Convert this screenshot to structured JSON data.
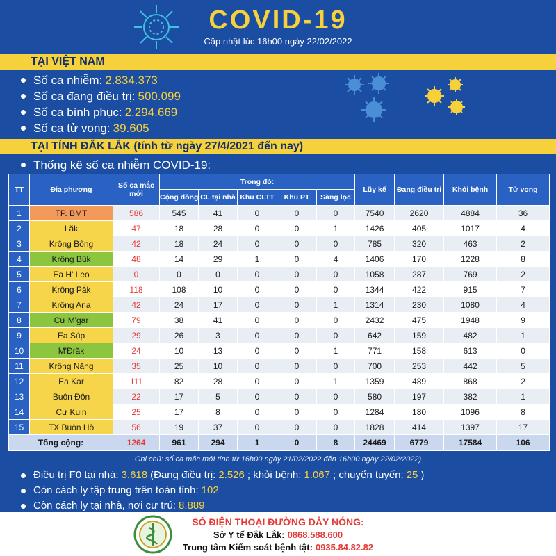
{
  "header": {
    "title": "COVID-19",
    "subtitle": "Cập nhật lúc 16h00 ngày 22/02/2022"
  },
  "vietnam": {
    "heading": "TẠI VIỆT NAM",
    "items": [
      {
        "label": "Số ca nhiễm:",
        "value": "2.834.373"
      },
      {
        "label": "Số ca đang điều trị:",
        "value": "500.099"
      },
      {
        "label": "Số ca bình phục:",
        "value": "2.294.669"
      },
      {
        "label": "Số ca tử vong:",
        "value": "39.605"
      }
    ]
  },
  "province": {
    "heading": "TẠI TỈNH ĐẮK LẮK (tính từ ngày 27/4/2021 đến nay)",
    "intro": "Thống kê số ca nhiễm COVID-19:"
  },
  "table": {
    "columns": [
      "TT",
      "Địa phương",
      "Số ca mắc mới",
      "Trong đó:",
      "Lũy kế",
      "Đang điều trị",
      "Khỏi bệnh",
      "Tử vong"
    ],
    "subcolumns": [
      "Cộng đồng",
      "CL tại nhà",
      "Khu CLTT",
      "Khu PT",
      "Sàng lọc"
    ],
    "name_colors": [
      "#f39a5b",
      "#f7d54a",
      "#f7d54a",
      "#8cc63f",
      "#f7d54a",
      "#f7d54a",
      "#f7d54a",
      "#8cc63f",
      "#f7d54a",
      "#8cc63f",
      "#f7d54a",
      "#f7d54a",
      "#f7d54a",
      "#f7d54a",
      "#f7d54a"
    ],
    "rows": [
      [
        "1",
        "TP. BMT",
        "586",
        "545",
        "41",
        "0",
        "0",
        "0",
        "7540",
        "2620",
        "4884",
        "36"
      ],
      [
        "2",
        "Lăk",
        "47",
        "18",
        "28",
        "0",
        "0",
        "1",
        "1426",
        "405",
        "1017",
        "4"
      ],
      [
        "3",
        "Krông Bông",
        "42",
        "18",
        "24",
        "0",
        "0",
        "0",
        "785",
        "320",
        "463",
        "2"
      ],
      [
        "4",
        "Krông Búk",
        "48",
        "14",
        "29",
        "1",
        "0",
        "4",
        "1406",
        "170",
        "1228",
        "8"
      ],
      [
        "5",
        "Ea H' Leo",
        "0",
        "0",
        "0",
        "0",
        "0",
        "0",
        "1058",
        "287",
        "769",
        "2"
      ],
      [
        "6",
        "Krông Pắk",
        "118",
        "108",
        "10",
        "0",
        "0",
        "0",
        "1344",
        "422",
        "915",
        "7"
      ],
      [
        "7",
        "Krông Ana",
        "42",
        "24",
        "17",
        "0",
        "0",
        "1",
        "1314",
        "230",
        "1080",
        "4"
      ],
      [
        "8",
        "Cư M'gar",
        "79",
        "38",
        "41",
        "0",
        "0",
        "0",
        "2432",
        "475",
        "1948",
        "9"
      ],
      [
        "9",
        "Ea Súp",
        "29",
        "26",
        "3",
        "0",
        "0",
        "0",
        "642",
        "159",
        "482",
        "1"
      ],
      [
        "10",
        "M'Đrăk",
        "24",
        "10",
        "13",
        "0",
        "0",
        "1",
        "771",
        "158",
        "613",
        "0"
      ],
      [
        "11",
        "Krông Năng",
        "35",
        "25",
        "10",
        "0",
        "0",
        "0",
        "700",
        "253",
        "442",
        "5"
      ],
      [
        "12",
        "Ea Kar",
        "111",
        "82",
        "28",
        "0",
        "0",
        "1",
        "1359",
        "489",
        "868",
        "2"
      ],
      [
        "13",
        "Buôn Đôn",
        "22",
        "17",
        "5",
        "0",
        "0",
        "0",
        "580",
        "197",
        "382",
        "1"
      ],
      [
        "14",
        "Cư Kuin",
        "25",
        "17",
        "8",
        "0",
        "0",
        "0",
        "1284",
        "180",
        "1096",
        "8"
      ],
      [
        "15",
        "TX Buôn Hồ",
        "56",
        "19",
        "37",
        "0",
        "0",
        "0",
        "1828",
        "414",
        "1397",
        "17"
      ]
    ],
    "total": [
      "Tổng cộng:",
      "1264",
      "961",
      "294",
      "1",
      "0",
      "8",
      "24469",
      "6779",
      "17584",
      "106"
    ]
  },
  "note": "Ghi chú: số ca mắc mới tính từ 16h00 ngày 21/02/2022 đến 16h00 ngày 22/02/2022)",
  "extra": [
    [
      "Điều trị F0 tại nhà:",
      "3.618",
      "(Đang điều trị:",
      "2.526",
      "; khỏi bệnh:",
      "1.067",
      "; chuyển tuyến:",
      "25",
      ")"
    ],
    [
      "Còn cách ly tập trung trên toàn tỉnh:",
      "102"
    ],
    [
      "Còn cách ly tại nhà, nơi cư trú:",
      "8.889"
    ]
  ],
  "hotline": {
    "title": "SỐ ĐIỆN THOẠI ĐƯỜNG DÂY NÓNG:",
    "lines": [
      {
        "label": "Sở Y tế Đắk Lắk:",
        "value": "0868.588.600"
      },
      {
        "label": "Trung tâm Kiểm soát bệnh tật:",
        "value": "0935.84.82.82"
      }
    ]
  }
}
